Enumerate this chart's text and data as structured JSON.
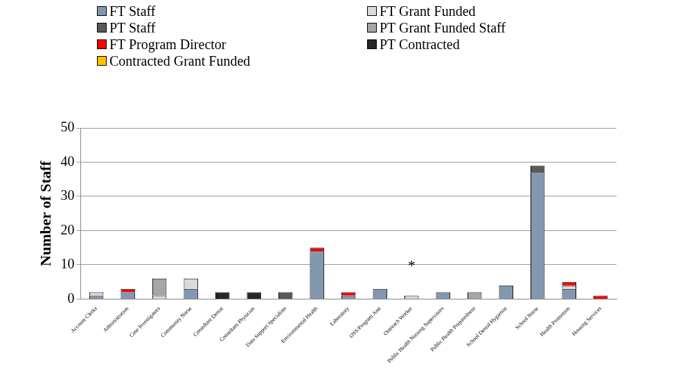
{
  "chart_data": {
    "type": "bar",
    "stacked": true,
    "ylabel": "Number of Staff",
    "categories": [
      "Account Clerks",
      "Administration",
      "Case Investigators",
      "Community Nurse",
      "Consultant Denist",
      "Consultant Physician",
      "Data Support Specialists",
      "Environmental Health",
      "Laboratory",
      "OSS/Program Asst",
      "Outreach Worker",
      "Public Health Nursing Supervisors",
      "Public Health Preparedness",
      "School Dental Hygienist",
      "School Nurse",
      "Health Promotion",
      "Housing Services"
    ],
    "series": [
      {
        "name": "FT Staff",
        "color": "#8497b0",
        "values": [
          1,
          2,
          null,
          3,
          null,
          null,
          null,
          14,
          1,
          3,
          null,
          2,
          null,
          4,
          37,
          3,
          null
        ]
      },
      {
        "name": "FT Grant Funded",
        "color": "#d9d9d9",
        "values": [
          1,
          null,
          1,
          3,
          null,
          null,
          null,
          null,
          null,
          null,
          1,
          null,
          null,
          null,
          null,
          1,
          null
        ]
      },
      {
        "name": "PT Staff",
        "color": "#595959",
        "values": [
          null,
          null,
          null,
          null,
          null,
          null,
          2,
          null,
          null,
          null,
          null,
          null,
          null,
          null,
          2,
          null,
          null
        ]
      },
      {
        "name": "PT Grant Funded Staff",
        "color": "#a6a6a6",
        "values": [
          null,
          null,
          5,
          null,
          null,
          null,
          null,
          null,
          null,
          null,
          null,
          null,
          2,
          null,
          null,
          null,
          null
        ]
      },
      {
        "name": "FT Program Director",
        "color": "#ff0000",
        "values": [
          null,
          1,
          null,
          null,
          null,
          null,
          null,
          1,
          1,
          null,
          null,
          null,
          null,
          null,
          null,
          1,
          1
        ]
      },
      {
        "name": "PT Contracted",
        "color": "#262626",
        "values": [
          null,
          null,
          null,
          null,
          2,
          2,
          null,
          null,
          null,
          null,
          null,
          null,
          null,
          null,
          null,
          null,
          null
        ]
      },
      {
        "name": "Contracted Grant Funded",
        "color": "#ffc000",
        "values": [
          null,
          null,
          null,
          null,
          null,
          null,
          null,
          null,
          null,
          null,
          null,
          null,
          null,
          null,
          null,
          null,
          null
        ]
      }
    ],
    "ylim": [
      0,
      50
    ],
    "yticks": [
      0,
      10,
      20,
      30,
      40,
      50
    ],
    "grid": "y",
    "legend": "top",
    "annotations": [
      "*"
    ]
  }
}
